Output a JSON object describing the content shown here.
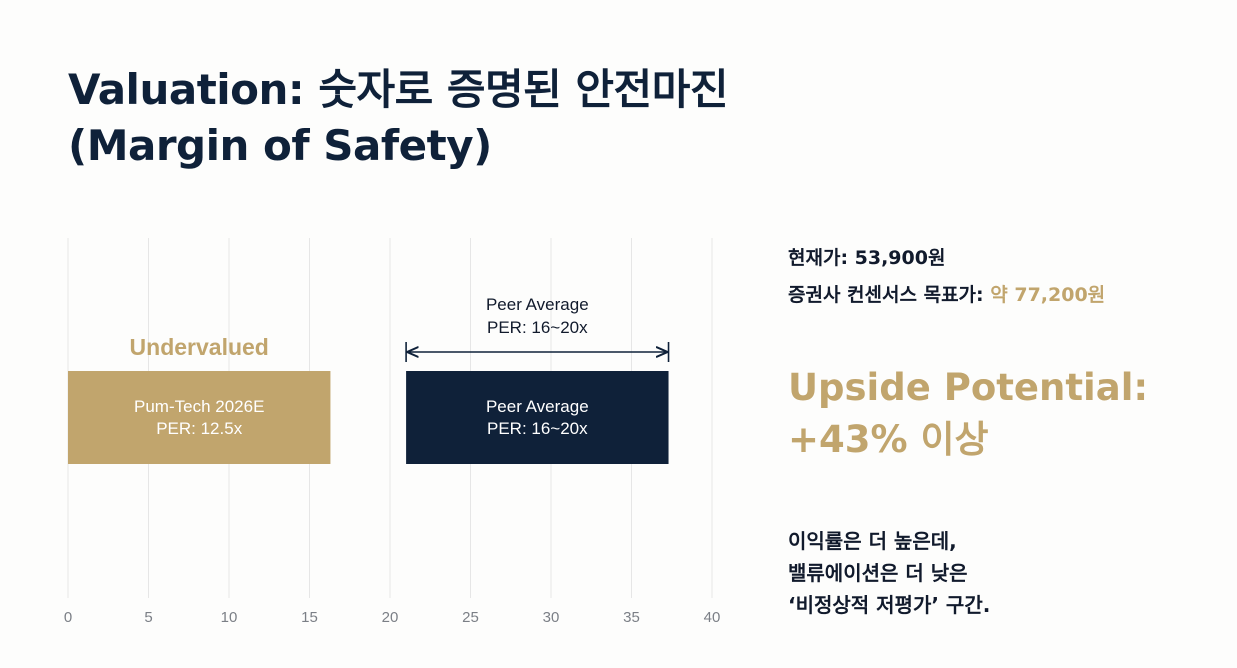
{
  "title": {
    "line1": "Valuation: 숫자로 증명된 안전마진",
    "line2": "(Margin of Safety)"
  },
  "chart_data": {
    "type": "bar",
    "orientation": "horizontal",
    "x_ticks": [
      0,
      5,
      10,
      15,
      20,
      25,
      30,
      35,
      40
    ],
    "xlim": [
      0,
      40
    ],
    "grid": true,
    "bars": [
      {
        "label_line1": "Pum-Tech 2026E",
        "label_line2": "PER: 12.5x",
        "start": 0,
        "end": 16.3,
        "color": "#c1a56d"
      },
      {
        "label_line1": "Peer Average",
        "label_line2": "PER: 16~20x",
        "start": 21,
        "end": 37.3,
        "color": "#0f2139"
      }
    ],
    "annotations": {
      "undervalued": "Undervalued",
      "range_label_line1": "Peer Average",
      "range_label_line2": "PER: 16~20x",
      "range_start": 21,
      "range_end": 37.3
    }
  },
  "info": {
    "current_price_label": "현재가: 53,900원",
    "target_label": "증권사 컨센서스 목표가:",
    "target_value": "약 77,200원"
  },
  "upside": {
    "line1": "Upside Potential:",
    "line2": "+43% 이상"
  },
  "note": {
    "line1": "이익률은 더 높은데,",
    "line2": "밸류에이션은 더 낮은",
    "line3": "‘비정상적 저평가’ 구간."
  },
  "colors": {
    "navy": "#0f2139",
    "gold": "#c1a56d",
    "grid": "#e6e6e6"
  }
}
